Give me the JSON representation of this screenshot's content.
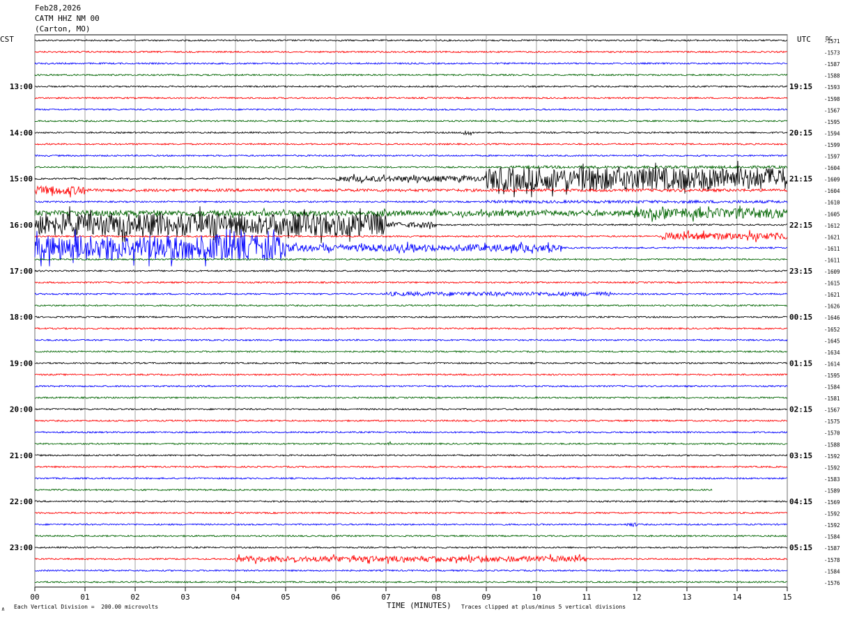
{
  "header": {
    "date": "Feb28,2026",
    "station": "CATM HHZ NM 00",
    "location": "(Carton, MO)"
  },
  "left_tz": "CST",
  "right_tz": "UTC",
  "dc_label": "DC",
  "footer": {
    "scale_note": "Each Vertical Division =  200.00 microvolts",
    "clip_note": "Traces clipped at plus/minus 5 vertical divisions",
    "corner_mark": "∧"
  },
  "trace_colors": [
    "#000000",
    "#ff0000",
    "#0000ff",
    "#006400"
  ],
  "chart_data": {
    "type": "line",
    "title": "",
    "xlabel": "TIME (MINUTES)",
    "ylabel": "",
    "xlim": [
      0,
      15
    ],
    "x_ticks": [
      "00",
      "01",
      "02",
      "03",
      "04",
      "05",
      "06",
      "07",
      "08",
      "09",
      "10",
      "11",
      "12",
      "13",
      "14",
      "15"
    ],
    "left_hour_labels": [
      "13:00",
      "14:00",
      "15:00",
      "16:00",
      "17:00",
      "18:00",
      "19:00",
      "20:00",
      "21:00",
      "22:00",
      "23:00"
    ],
    "right_hour_labels": [
      "19:15",
      "20:15",
      "21:15",
      "22:15",
      "23:15",
      "00:15",
      "01:15",
      "02:15",
      "03:15",
      "04:15",
      "05:15"
    ],
    "trace_minutes": 15,
    "dc_offsets": [
      -1571,
      -1573,
      -1587,
      -1588,
      -1593,
      -1598,
      -1567,
      -1595,
      -1594,
      -1599,
      -1597,
      -1604,
      -1609,
      -1604,
      -1610,
      -1605,
      -1612,
      -1621,
      -1611,
      -1611,
      -1609,
      -1615,
      -1621,
      -1626,
      -1646,
      -1652,
      -1645,
      -1634,
      -1614,
      -1595,
      -1584,
      -1581,
      -1567,
      -1575,
      -1570,
      -1588,
      -1592,
      -1592,
      -1583,
      -1589,
      -1569,
      -1592,
      -1592,
      -1584,
      -1587,
      -1578,
      -1584,
      -1576
    ],
    "activity": [
      {
        "trace": 8,
        "from_min": 8.5,
        "to_min": 8.7,
        "amp": 4
      },
      {
        "trace": 11,
        "from_min": 9.5,
        "to_min": 15,
        "amp": 2
      },
      {
        "trace": 12,
        "from_min": 6,
        "to_min": 9,
        "amp": 4
      },
      {
        "trace": 12,
        "from_min": 9,
        "to_min": 15,
        "amp": 16
      },
      {
        "trace": 13,
        "from_min": 0,
        "to_min": 1,
        "amp": 6
      },
      {
        "trace": 13,
        "from_min": 1,
        "to_min": 15,
        "amp": 2
      },
      {
        "trace": 14,
        "from_min": 9,
        "to_min": 15,
        "amp": 2
      },
      {
        "trace": 15,
        "from_min": 0,
        "to_min": 12,
        "amp": 4
      },
      {
        "trace": 15,
        "from_min": 12,
        "to_min": 15,
        "amp": 7
      },
      {
        "trace": 16,
        "from_min": 0,
        "to_min": 7,
        "amp": 16
      },
      {
        "trace": 16,
        "from_min": 7,
        "to_min": 8,
        "amp": 4
      },
      {
        "trace": 17,
        "from_min": 12.5,
        "to_min": 15,
        "amp": 5
      },
      {
        "trace": 18,
        "from_min": 0,
        "to_min": 5,
        "amp": 18
      },
      {
        "trace": 18,
        "from_min": 5,
        "to_min": 10.5,
        "amp": 5
      },
      {
        "trace": 22,
        "from_min": 7,
        "to_min": 11.5,
        "amp": 3
      },
      {
        "trace": 35,
        "from_min": 7,
        "to_min": 7.1,
        "amp": 3
      },
      {
        "trace": 42,
        "from_min": 11.8,
        "to_min": 12,
        "amp": 3
      },
      {
        "trace": 45,
        "from_min": 4,
        "to_min": 11,
        "amp": 4
      }
    ],
    "truncated": [
      {
        "trace": 39,
        "end_min": 13.5
      }
    ],
    "grid": true
  }
}
